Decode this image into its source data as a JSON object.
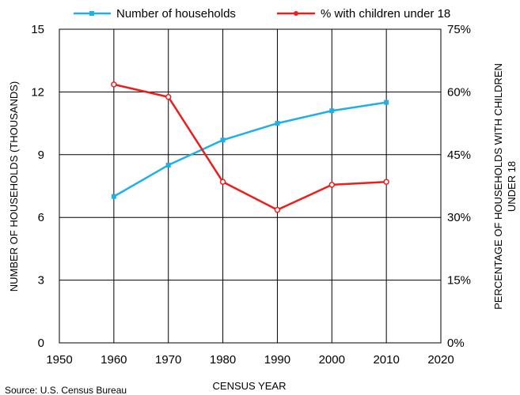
{
  "chart_data": {
    "type": "line",
    "x": [
      1960,
      1970,
      1980,
      1990,
      2000,
      2010
    ],
    "xlabel": "CENSUS YEAR",
    "xlim": [
      1950,
      2020
    ],
    "xticks": [
      "1950",
      "1960",
      "1970",
      "1980",
      "1990",
      "2000",
      "2010",
      "2020"
    ],
    "ylabel": "NUMBER OF HOUSEHOLDS (THOUSANDS)",
    "ylim": [
      0,
      15
    ],
    "yticks": [
      "0",
      "3",
      "6",
      "9",
      "12",
      "15"
    ],
    "y2label_line1": "PERCENTAGE OF HOUSEHOLDS WITH CHILDREN",
    "y2label_line2": "UNDER 18",
    "y2lim": [
      0,
      75
    ],
    "y2ticks": [
      "0%",
      "15%",
      "30%",
      "45%",
      "60%",
      "75%"
    ],
    "grid": true,
    "legend_position": "top",
    "series": [
      {
        "name": "Number of households",
        "axis": "left",
        "color": "#1fb0e6",
        "marker": "square",
        "values": [
          7.0,
          8.5,
          9.7,
          10.5,
          11.1,
          11.5
        ]
      },
      {
        "name": "% with children under 18",
        "axis": "right",
        "color": "#ee1c1c",
        "marker": "circle",
        "values": [
          61.8,
          58.8,
          38.5,
          31.8,
          37.8,
          38.5
        ]
      }
    ],
    "source": "Source: U.S. Census Bureau"
  }
}
